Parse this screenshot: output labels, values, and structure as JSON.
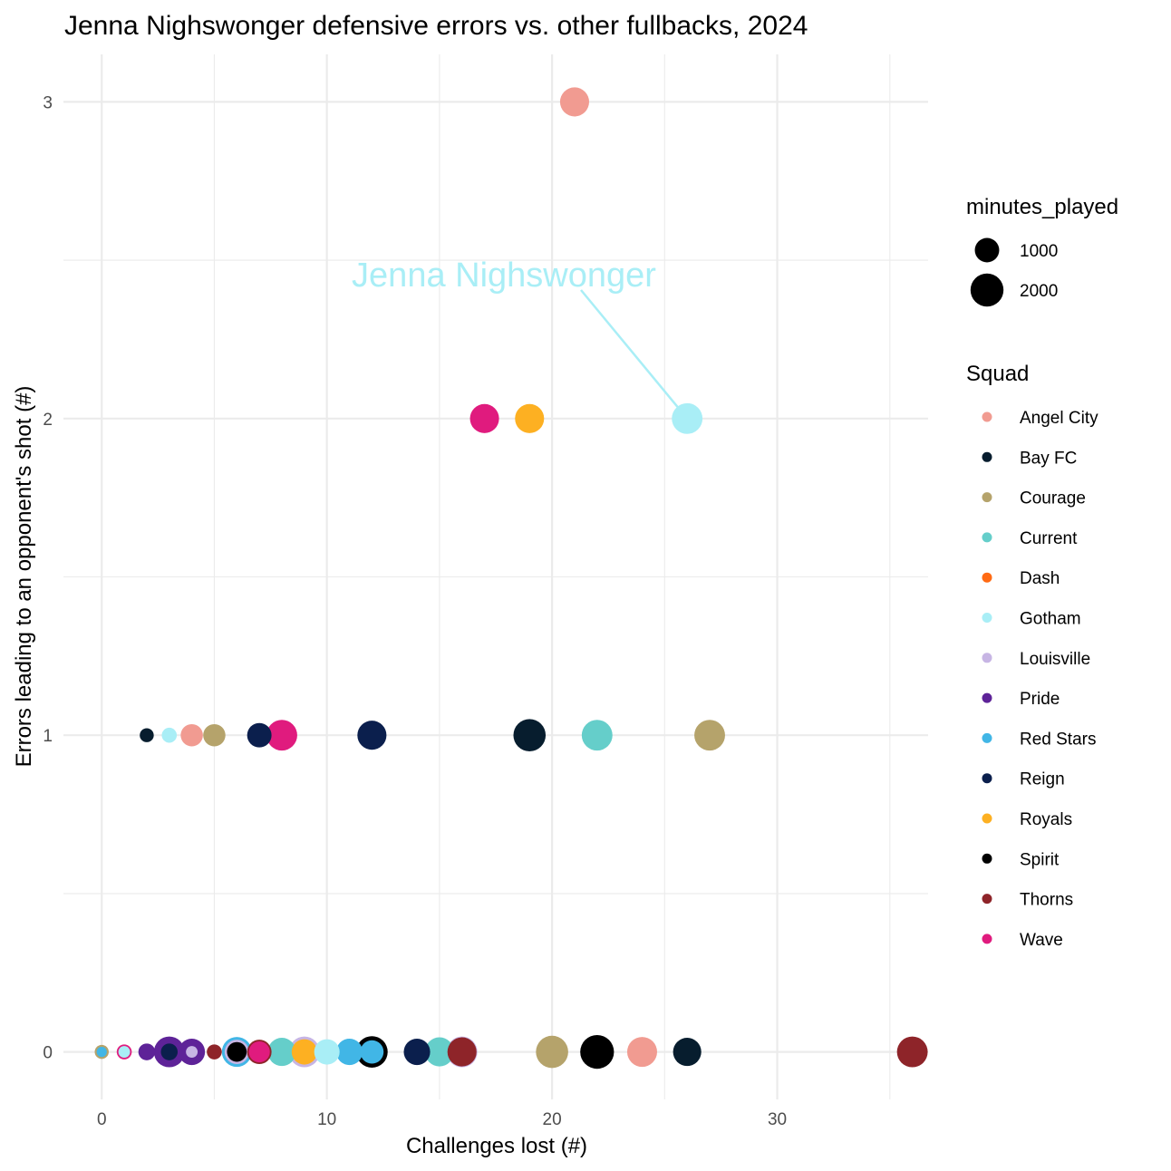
{
  "chart_data": {
    "type": "scatter",
    "title": "Jenna Nighswonger defensive errors vs. other fullbacks, 2024",
    "xlabel": "Challenges lost (#)",
    "ylabel": "Errors leading to an opponent's shot (#)",
    "xlim": [
      -1.7,
      36.7
    ],
    "ylim": [
      -0.15,
      3.15
    ],
    "x_ticks": [
      0,
      10,
      20,
      30
    ],
    "y_ticks": [
      0,
      1,
      2,
      3
    ],
    "grid": true,
    "legend_position": "right",
    "size_legend": {
      "title": "minutes_played",
      "entries": [
        {
          "label": "1000",
          "minutes": 1000
        },
        {
          "label": "2000",
          "minutes": 2000
        }
      ]
    },
    "squad_legend": {
      "title": "Squad",
      "entries": [
        {
          "label": "Angel City",
          "color": "#F19B91"
        },
        {
          "label": "Bay FC",
          "color": "#071D2E"
        },
        {
          "label": "Courage",
          "color": "#B5A36B"
        },
        {
          "label": "Current",
          "color": "#65CECA"
        },
        {
          "label": "Dash",
          "color": "#FF6A13"
        },
        {
          "label": "Gotham",
          "color": "#A9EEF6"
        },
        {
          "label": "Louisville",
          "color": "#C7B5E4"
        },
        {
          "label": "Pride",
          "color": "#5E2398"
        },
        {
          "label": "Red Stars",
          "color": "#41B6E6"
        },
        {
          "label": "Reign",
          "color": "#0B1F4D"
        },
        {
          "label": "Royals",
          "color": "#FDB022"
        },
        {
          "label": "Spirit",
          "color": "#000000"
        },
        {
          "label": "Thorns",
          "color": "#8E2429"
        },
        {
          "label": "Wave",
          "color": "#E01B7E"
        }
      ]
    },
    "annotation": {
      "text": "Jenna Nighswonger",
      "x": 26,
      "y": 2,
      "color": "#A9EEF6"
    },
    "points": [
      {
        "x": 21,
        "y": 3,
        "squad": "Angel City",
        "minutes": 1500
      },
      {
        "x": 17,
        "y": 2,
        "squad": "Wave",
        "minutes": 1500
      },
      {
        "x": 19,
        "y": 2,
        "squad": "Royals",
        "minutes": 1500
      },
      {
        "x": 26,
        "y": 2,
        "squad": "Gotham",
        "minutes": 1700
      },
      {
        "x": 2,
        "y": 1,
        "squad": "Bay FC",
        "minutes": 250
      },
      {
        "x": 3,
        "y": 1,
        "squad": "Gotham",
        "minutes": 300
      },
      {
        "x": 4,
        "y": 1,
        "squad": "Angel City",
        "minutes": 800
      },
      {
        "x": 5,
        "y": 1,
        "squad": "Courage",
        "minutes": 800
      },
      {
        "x": 7,
        "y": 1,
        "squad": "Reign",
        "minutes": 1000
      },
      {
        "x": 8,
        "y": 1,
        "squad": "Wave",
        "minutes": 1700
      },
      {
        "x": 12,
        "y": 1,
        "squad": "Reign",
        "minutes": 1500
      },
      {
        "x": 19,
        "y": 1,
        "squad": "Bay FC",
        "minutes": 1900
      },
      {
        "x": 22,
        "y": 1,
        "squad": "Current",
        "minutes": 1700
      },
      {
        "x": 27,
        "y": 1,
        "squad": "Courage",
        "minutes": 1700
      },
      {
        "x": 0,
        "y": 0,
        "squad": "Courage",
        "minutes": 250
      },
      {
        "x": 0,
        "y": 0,
        "squad": "Red Stars",
        "minutes": 100
      },
      {
        "x": 1,
        "y": 0,
        "squad": "Wave",
        "minutes": 300
      },
      {
        "x": 1,
        "y": 0,
        "squad": "Gotham",
        "minutes": 150
      },
      {
        "x": 2,
        "y": 0,
        "squad": "Pride",
        "minutes": 400
      },
      {
        "x": 3,
        "y": 0,
        "squad": "Pride",
        "minutes": 1700
      },
      {
        "x": 3,
        "y": 0,
        "squad": "Reign",
        "minutes": 400
      },
      {
        "x": 4,
        "y": 0,
        "squad": "Pride",
        "minutes": 1200
      },
      {
        "x": 4,
        "y": 0,
        "squad": "Louisville",
        "minutes": 150
      },
      {
        "x": 5,
        "y": 0,
        "squad": "Thorns",
        "minutes": 300
      },
      {
        "x": 6,
        "y": 0,
        "squad": "Red Stars",
        "minutes": 1600
      },
      {
        "x": 6,
        "y": 0,
        "squad": "Louisville",
        "minutes": 1000
      },
      {
        "x": 6,
        "y": 0,
        "squad": "Spirit",
        "minutes": 600
      },
      {
        "x": 7,
        "y": 0,
        "squad": "Thorns",
        "minutes": 1000
      },
      {
        "x": 7,
        "y": 0,
        "squad": "Wave",
        "minutes": 700
      },
      {
        "x": 8,
        "y": 0,
        "squad": "Current",
        "minutes": 1400
      },
      {
        "x": 9,
        "y": 0,
        "squad": "Louisville",
        "minutes": 1700
      },
      {
        "x": 9,
        "y": 0,
        "squad": "Royals",
        "minutes": 1100
      },
      {
        "x": 10,
        "y": 0,
        "squad": "Gotham",
        "minutes": 1100
      },
      {
        "x": 11,
        "y": 0,
        "squad": "Red Stars",
        "minutes": 1200
      },
      {
        "x": 12,
        "y": 0,
        "squad": "Spirit",
        "minutes": 1800
      },
      {
        "x": 12,
        "y": 0,
        "squad": "Red Stars",
        "minutes": 900
      },
      {
        "x": 14,
        "y": 0,
        "squad": "Reign",
        "minutes": 1200
      },
      {
        "x": 15,
        "y": 0,
        "squad": "Current",
        "minutes": 1500
      },
      {
        "x": 16,
        "y": 0,
        "squad": "Louisville",
        "minutes": 1700
      },
      {
        "x": 16,
        "y": 0,
        "squad": "Thorns",
        "minutes": 1500
      },
      {
        "x": 20,
        "y": 0,
        "squad": "Courage",
        "minutes": 1900
      },
      {
        "x": 22,
        "y": 0,
        "squad": "Spirit",
        "minutes": 2100
      },
      {
        "x": 24,
        "y": 0,
        "squad": "Angel City",
        "minutes": 1600
      },
      {
        "x": 26,
        "y": 0,
        "squad": "Bay FC",
        "minutes": 1400
      },
      {
        "x": 36,
        "y": 0,
        "squad": "Thorns",
        "minutes": 1700
      }
    ]
  }
}
